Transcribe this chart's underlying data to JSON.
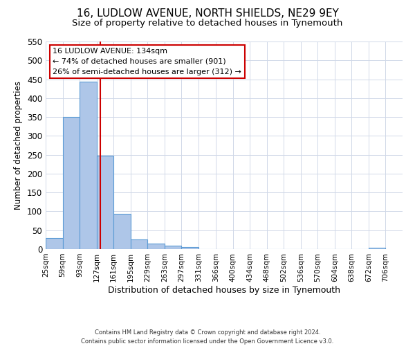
{
  "title": "16, LUDLOW AVENUE, NORTH SHIELDS, NE29 9EY",
  "subtitle": "Size of property relative to detached houses in Tynemouth",
  "xlabel": "Distribution of detached houses by size in Tynemouth",
  "ylabel": "Number of detached properties",
  "bar_left_edges": [
    25,
    59,
    93,
    127,
    161,
    195,
    229,
    263,
    297,
    331,
    366,
    400,
    434,
    468,
    502,
    536,
    570,
    604,
    638,
    672
  ],
  "bar_widths": [
    34,
    34,
    34,
    34,
    34,
    34,
    34,
    34,
    34,
    35,
    34,
    34,
    34,
    34,
    34,
    34,
    34,
    34,
    34,
    34
  ],
  "bar_heights": [
    30,
    350,
    443,
    248,
    93,
    26,
    15,
    10,
    5,
    0,
    0,
    0,
    0,
    0,
    0,
    0,
    0,
    0,
    0,
    3
  ],
  "bar_color": "#aec6e8",
  "bar_edge_color": "#5b9bd5",
  "property_line_x": 134,
  "property_line_color": "#cc0000",
  "ylim": [
    0,
    550
  ],
  "yticks": [
    0,
    50,
    100,
    150,
    200,
    250,
    300,
    350,
    400,
    450,
    500,
    550
  ],
  "xtick_labels": [
    "25sqm",
    "59sqm",
    "93sqm",
    "127sqm",
    "161sqm",
    "195sqm",
    "229sqm",
    "263sqm",
    "297sqm",
    "331sqm",
    "366sqm",
    "400sqm",
    "434sqm",
    "468sqm",
    "502sqm",
    "536sqm",
    "570sqm",
    "604sqm",
    "638sqm",
    "672sqm",
    "706sqm"
  ],
  "xtick_positions": [
    25,
    59,
    93,
    127,
    161,
    195,
    229,
    263,
    297,
    331,
    366,
    400,
    434,
    468,
    502,
    536,
    570,
    604,
    638,
    672,
    706
  ],
  "annotation_title": "16 LUDLOW AVENUE: 134sqm",
  "annotation_line1": "← 74% of detached houses are smaller (901)",
  "annotation_line2": "26% of semi-detached houses are larger (312) →",
  "footer_line1": "Contains HM Land Registry data © Crown copyright and database right 2024.",
  "footer_line2": "Contains public sector information licensed under the Open Government Licence v3.0.",
  "background_color": "#ffffff",
  "grid_color": "#d0d8e8",
  "title_fontsize": 11,
  "subtitle_fontsize": 9.5
}
